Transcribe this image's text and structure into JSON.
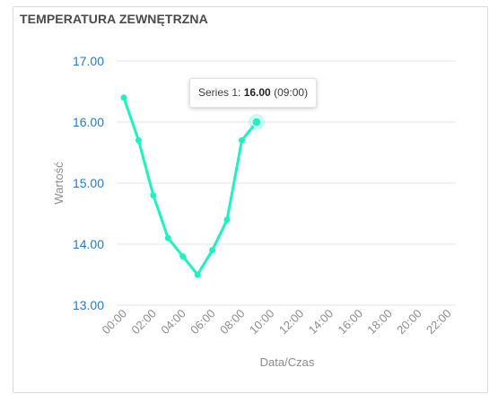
{
  "card": {
    "title": "TEMPERATURA ZEWNĘTRZNA"
  },
  "tooltip": {
    "series_label": "Series 1:",
    "value": "16.00",
    "time": "(09:00)"
  },
  "colors": {
    "series": "#1ef2c0",
    "ytick": "#2a7abf",
    "grid": "#e6e6e6",
    "axis_text": "#8c8c8c"
  },
  "chart_data": {
    "type": "line",
    "title": "TEMPERATURA ZEWNĘTRZNA",
    "xlabel": "Data/Czas",
    "ylabel": "Wartość",
    "ylim": [
      13.0,
      17.0
    ],
    "xlim": [
      "00:00",
      "23:00"
    ],
    "y_ticks": [
      "17.00",
      "16.00",
      "15.00",
      "14.00",
      "13.00"
    ],
    "x_ticks": [
      "00:00",
      "02:00",
      "04:00",
      "06:00",
      "08:00",
      "10:00",
      "12:00",
      "14:00",
      "16:00",
      "18:00",
      "20:00",
      "22:00"
    ],
    "grid": "horizontal",
    "series": [
      {
        "name": "Series 1",
        "x": [
          "00:00",
          "01:00",
          "02:00",
          "03:00",
          "04:00",
          "05:00",
          "06:00",
          "07:00",
          "08:00",
          "09:00"
        ],
        "values": [
          16.4,
          15.7,
          14.8,
          14.1,
          13.8,
          13.5,
          13.9,
          14.4,
          15.7,
          16.0
        ]
      }
    ],
    "highlighted_point": {
      "series": "Series 1",
      "x": "09:00",
      "y": 16.0
    }
  }
}
